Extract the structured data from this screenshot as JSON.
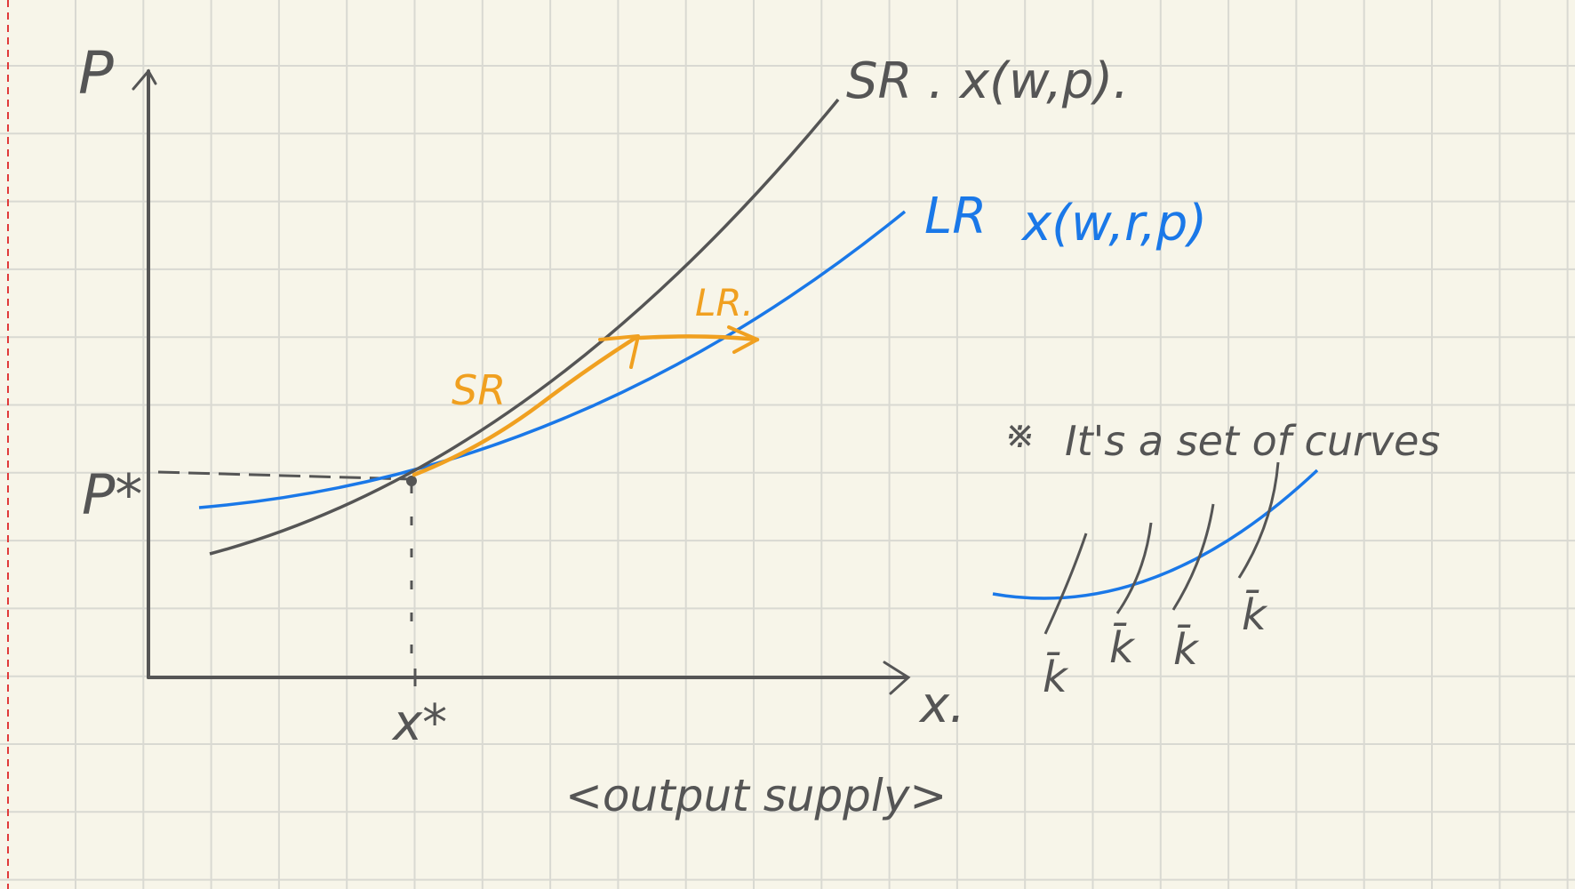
{
  "colors": {
    "paper": "#f7f5e9",
    "grid": "#d9d9d2",
    "margin_line": "#e03a3a",
    "ink": "#555555",
    "blue": "#1a78e8",
    "orange": "#f0a020"
  },
  "axes": {
    "y_label": "P",
    "x_label": "x.",
    "p_star": "P*",
    "x_star": "x*"
  },
  "curves": {
    "sr_label": "SR . x(w,p).",
    "lr_label": "LR",
    "lr_formula": "x(w,r,p)"
  },
  "arrows": {
    "sr_label": "SR",
    "lr_label": "LR."
  },
  "note": {
    "mark": "※",
    "text": "It's a set of curves"
  },
  "k_labels": [
    "k̄",
    "k̄",
    "k̄",
    "k̄"
  ],
  "caption": "<output supply>"
}
